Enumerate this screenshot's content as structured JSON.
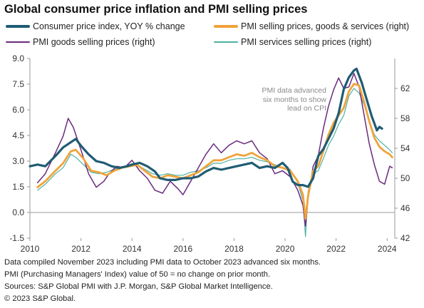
{
  "title": "Global consumer price inflation and PMI selling prices",
  "annotation": "PMI data advanced\nsix months to show\nlead on CPI",
  "footnotes": [
    "Data compiled November 2023 including PMI data to October 2023 advanced six months.",
    "PMI (Purchasing Managers' Index) value of 50 = no change on prior month.",
    "Sources: S&P Global PMI with J.P. Morgan, S&P Global Market Intelligence.",
    "© 2023 S&P Global."
  ],
  "chart_data": {
    "type": "line",
    "title": "Global consumer price inflation and PMI selling prices",
    "x_axis": {
      "ticks": [
        2010,
        2012,
        2014,
        2016,
        2018,
        2020,
        2022,
        2024
      ],
      "range": [
        2010.0,
        2024.3
      ]
    },
    "y_left": {
      "ticks": [
        -1.5,
        0.0,
        1.5,
        3.0,
        4.5,
        6.0,
        7.5,
        9.0
      ],
      "tick_labels": [
        "-1.5",
        "0.0",
        "1.5",
        "3.0",
        "4.5",
        "6.0",
        "7.5",
        "9.0"
      ],
      "range": [
        -1.5,
        9.0
      ]
    },
    "y_right": {
      "ticks": [
        42,
        46,
        50,
        54,
        58,
        62
      ],
      "range": [
        42,
        66
      ]
    },
    "legend_position": "top",
    "grid": false,
    "series": [
      {
        "name": "Consumer price index, YOY % change",
        "axis": "left",
        "color": "#1f5c73",
        "width": 3.2,
        "points": [
          [
            2010.0,
            2.7
          ],
          [
            2010.3,
            2.8
          ],
          [
            2010.6,
            2.7
          ],
          [
            2011.0,
            3.3
          ],
          [
            2011.3,
            3.8
          ],
          [
            2011.6,
            4.1
          ],
          [
            2011.8,
            4.3
          ],
          [
            2012.0,
            3.9
          ],
          [
            2012.3,
            3.4
          ],
          [
            2012.6,
            3.0
          ],
          [
            2012.9,
            2.9
          ],
          [
            2013.2,
            2.7
          ],
          [
            2013.5,
            2.6
          ],
          [
            2013.8,
            2.7
          ],
          [
            2014.0,
            2.8
          ],
          [
            2014.3,
            2.9
          ],
          [
            2014.6,
            2.7
          ],
          [
            2014.9,
            2.4
          ],
          [
            2015.1,
            2.0
          ],
          [
            2015.4,
            1.9
          ],
          [
            2015.7,
            1.9
          ],
          [
            2016.0,
            2.0
          ],
          [
            2016.3,
            2.0
          ],
          [
            2016.6,
            2.1
          ],
          [
            2016.9,
            2.4
          ],
          [
            2017.2,
            2.6
          ],
          [
            2017.5,
            2.5
          ],
          [
            2017.8,
            2.6
          ],
          [
            2018.1,
            2.7
          ],
          [
            2018.4,
            2.8
          ],
          [
            2018.7,
            2.9
          ],
          [
            2019.0,
            2.6
          ],
          [
            2019.3,
            2.7
          ],
          [
            2019.6,
            2.6
          ],
          [
            2019.9,
            2.9
          ],
          [
            2020.1,
            2.6
          ],
          [
            2020.3,
            1.8
          ],
          [
            2020.5,
            1.6
          ],
          [
            2020.7,
            1.6
          ],
          [
            2020.9,
            1.5
          ],
          [
            2021.1,
            2.0
          ],
          [
            2021.3,
            3.3
          ],
          [
            2021.5,
            3.7
          ],
          [
            2021.7,
            4.3
          ],
          [
            2021.9,
            4.9
          ],
          [
            2022.1,
            5.8
          ],
          [
            2022.3,
            7.2
          ],
          [
            2022.5,
            7.9
          ],
          [
            2022.7,
            8.3
          ],
          [
            2022.8,
            8.4
          ],
          [
            2023.0,
            7.6
          ],
          [
            2023.2,
            6.6
          ],
          [
            2023.4,
            5.6
          ],
          [
            2023.5,
            5.2
          ],
          [
            2023.6,
            4.8
          ],
          [
            2023.7,
            5.0
          ],
          [
            2023.8,
            4.9
          ]
        ]
      },
      {
        "name": "PMI selling prices, goods & services (right)",
        "axis": "right",
        "color": "#f0a33a",
        "width": 2.8,
        "points": [
          [
            2010.3,
            48.8
          ],
          [
            2010.6,
            49.6
          ],
          [
            2011.0,
            51.0
          ],
          [
            2011.3,
            52.0
          ],
          [
            2011.6,
            53.6
          ],
          [
            2011.8,
            53.8
          ],
          [
            2012.1,
            52.6
          ],
          [
            2012.4,
            51.0
          ],
          [
            2012.7,
            50.8
          ],
          [
            2013.0,
            50.4
          ],
          [
            2013.3,
            51.0
          ],
          [
            2013.6,
            51.4
          ],
          [
            2013.9,
            51.6
          ],
          [
            2014.2,
            51.8
          ],
          [
            2014.5,
            51.0
          ],
          [
            2014.8,
            50.2
          ],
          [
            2015.1,
            50.0
          ],
          [
            2015.4,
            50.4
          ],
          [
            2015.7,
            50.2
          ],
          [
            2016.0,
            50.0
          ],
          [
            2016.3,
            50.4
          ],
          [
            2016.6,
            50.8
          ],
          [
            2016.9,
            51.6
          ],
          [
            2017.2,
            52.4
          ],
          [
            2017.5,
            52.4
          ],
          [
            2017.8,
            52.8
          ],
          [
            2018.1,
            53.2
          ],
          [
            2018.4,
            53.0
          ],
          [
            2018.7,
            53.4
          ],
          [
            2019.0,
            52.8
          ],
          [
            2019.3,
            52.4
          ],
          [
            2019.6,
            51.6
          ],
          [
            2019.9,
            51.4
          ],
          [
            2020.2,
            51.0
          ],
          [
            2020.5,
            49.6
          ],
          [
            2020.7,
            47.8
          ],
          [
            2020.8,
            44.6
          ],
          [
            2020.9,
            47.6
          ],
          [
            2021.1,
            51.0
          ],
          [
            2021.3,
            51.6
          ],
          [
            2021.5,
            53.6
          ],
          [
            2021.7,
            55.8
          ],
          [
            2021.9,
            57.4
          ],
          [
            2022.1,
            58.4
          ],
          [
            2022.3,
            59.4
          ],
          [
            2022.5,
            61.6
          ],
          [
            2022.7,
            62.6
          ],
          [
            2022.9,
            62.4
          ],
          [
            2023.1,
            60.2
          ],
          [
            2023.3,
            57.6
          ],
          [
            2023.5,
            55.4
          ],
          [
            2023.7,
            54.2
          ],
          [
            2023.9,
            53.6
          ],
          [
            2024.1,
            53.2
          ],
          [
            2024.2,
            52.8
          ]
        ]
      },
      {
        "name": "PMI goods selling prices (right)",
        "axis": "right",
        "color": "#6b2b7f",
        "width": 1.5,
        "points": [
          [
            2010.3,
            49.4
          ],
          [
            2010.6,
            50.6
          ],
          [
            2011.0,
            53.4
          ],
          [
            2011.3,
            55.6
          ],
          [
            2011.5,
            58.0
          ],
          [
            2011.7,
            56.8
          ],
          [
            2012.0,
            53.8
          ],
          [
            2012.3,
            50.6
          ],
          [
            2012.6,
            48.8
          ],
          [
            2012.9,
            49.6
          ],
          [
            2013.1,
            50.6
          ],
          [
            2013.4,
            51.6
          ],
          [
            2013.7,
            51.4
          ],
          [
            2014.0,
            52.4
          ],
          [
            2014.3,
            51.0
          ],
          [
            2014.6,
            50.0
          ],
          [
            2014.9,
            48.4
          ],
          [
            2015.2,
            48.0
          ],
          [
            2015.5,
            49.6
          ],
          [
            2015.8,
            48.6
          ],
          [
            2016.0,
            47.8
          ],
          [
            2016.3,
            49.6
          ],
          [
            2016.6,
            51.4
          ],
          [
            2016.9,
            53.2
          ],
          [
            2017.2,
            54.6
          ],
          [
            2017.5,
            53.4
          ],
          [
            2017.8,
            54.4
          ],
          [
            2018.1,
            55.0
          ],
          [
            2018.4,
            54.6
          ],
          [
            2018.7,
            55.0
          ],
          [
            2019.0,
            53.4
          ],
          [
            2019.3,
            52.6
          ],
          [
            2019.6,
            50.6
          ],
          [
            2019.9,
            51.0
          ],
          [
            2020.2,
            50.2
          ],
          [
            2020.5,
            48.4
          ],
          [
            2020.7,
            46.4
          ],
          [
            2020.8,
            43.6
          ],
          [
            2020.9,
            47.2
          ],
          [
            2021.1,
            51.6
          ],
          [
            2021.3,
            53.0
          ],
          [
            2021.5,
            56.6
          ],
          [
            2021.7,
            59.6
          ],
          [
            2021.9,
            61.8
          ],
          [
            2022.1,
            63.4
          ],
          [
            2022.3,
            62.0
          ],
          [
            2022.5,
            62.2
          ],
          [
            2022.7,
            64.0
          ],
          [
            2022.9,
            62.2
          ],
          [
            2023.1,
            58.4
          ],
          [
            2023.3,
            54.6
          ],
          [
            2023.5,
            51.8
          ],
          [
            2023.7,
            49.6
          ],
          [
            2023.9,
            49.2
          ],
          [
            2024.1,
            51.6
          ],
          [
            2024.2,
            51.4
          ]
        ]
      },
      {
        "name": "PMI services selling prices (right)",
        "axis": "right",
        "color": "#4fb1a2",
        "width": 1.2,
        "points": [
          [
            2010.3,
            48.4
          ],
          [
            2010.6,
            49.2
          ],
          [
            2011.0,
            50.6
          ],
          [
            2011.3,
            51.4
          ],
          [
            2011.6,
            53.2
          ],
          [
            2011.8,
            52.8
          ],
          [
            2012.1,
            51.8
          ],
          [
            2012.4,
            50.8
          ],
          [
            2012.7,
            50.6
          ],
          [
            2013.0,
            50.8
          ],
          [
            2013.3,
            51.2
          ],
          [
            2013.6,
            51.4
          ],
          [
            2013.9,
            51.6
          ],
          [
            2014.2,
            51.8
          ],
          [
            2014.5,
            51.2
          ],
          [
            2014.8,
            50.6
          ],
          [
            2015.1,
            50.4
          ],
          [
            2015.4,
            50.6
          ],
          [
            2015.7,
            50.4
          ],
          [
            2016.0,
            50.4
          ],
          [
            2016.3,
            50.8
          ],
          [
            2016.6,
            51.0
          ],
          [
            2016.9,
            51.4
          ],
          [
            2017.2,
            52.0
          ],
          [
            2017.5,
            52.0
          ],
          [
            2017.8,
            52.4
          ],
          [
            2018.1,
            52.6
          ],
          [
            2018.4,
            52.6
          ],
          [
            2018.7,
            52.8
          ],
          [
            2019.0,
            52.4
          ],
          [
            2019.3,
            52.2
          ],
          [
            2019.6,
            51.8
          ],
          [
            2019.9,
            51.4
          ],
          [
            2020.2,
            51.2
          ],
          [
            2020.5,
            49.4
          ],
          [
            2020.7,
            47.0
          ],
          [
            2020.8,
            42.2
          ],
          [
            2020.9,
            48.2
          ],
          [
            2021.1,
            50.6
          ],
          [
            2021.3,
            51.0
          ],
          [
            2021.5,
            52.6
          ],
          [
            2021.7,
            54.4
          ],
          [
            2021.9,
            55.6
          ],
          [
            2022.1,
            57.2
          ],
          [
            2022.3,
            58.4
          ],
          [
            2022.5,
            61.0
          ],
          [
            2022.7,
            62.0
          ],
          [
            2022.9,
            61.4
          ],
          [
            2023.1,
            59.8
          ],
          [
            2023.3,
            57.6
          ],
          [
            2023.5,
            55.8
          ],
          [
            2023.7,
            55.0
          ],
          [
            2023.9,
            54.4
          ],
          [
            2024.1,
            53.8
          ],
          [
            2024.2,
            53.4
          ]
        ]
      }
    ]
  }
}
